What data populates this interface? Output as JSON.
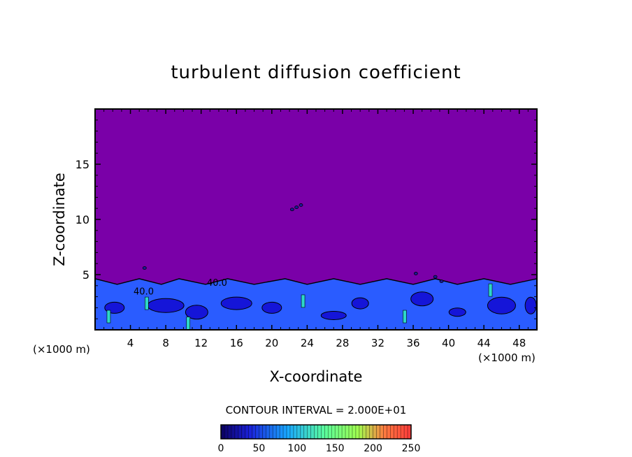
{
  "chart_data": {
    "type": "heatmap",
    "title": "turbulent diffusion coefficient",
    "xlabel": "X-coordinate",
    "ylabel": "Z-coordinate",
    "x_unit": "(×1000 m)",
    "xlim": [
      0,
      50
    ],
    "ylim": [
      0,
      20
    ],
    "x_ticks": [
      4,
      8,
      12,
      16,
      20,
      24,
      28,
      32,
      36,
      40,
      44,
      48
    ],
    "y_ticks": [
      5,
      10,
      15
    ],
    "contour_interval_label": "CONTOUR INTERVAL = 2.000E+01",
    "contour_labels": [
      {
        "text": "40.0",
        "x": 5.5,
        "z": 3.2
      },
      {
        "text": "40.0",
        "x": 13.8,
        "z": 4.0
      }
    ],
    "colorbar": {
      "min": 0,
      "max": 250,
      "tick_labels": [
        0,
        50,
        100,
        150,
        200,
        250
      ],
      "colors": [
        "#0b0060",
        "#2030ff",
        "#19b8ff",
        "#6dffa0",
        "#b8ff40",
        "#ff5030",
        "#ff3a3a"
      ]
    },
    "colors": {
      "background_field": "#7a00a8",
      "turbulent_layer": "#2a5cff",
      "core": "#1515d8",
      "high": "#2dd8c8"
    },
    "boundary_layer_top_z": 4.5
  }
}
